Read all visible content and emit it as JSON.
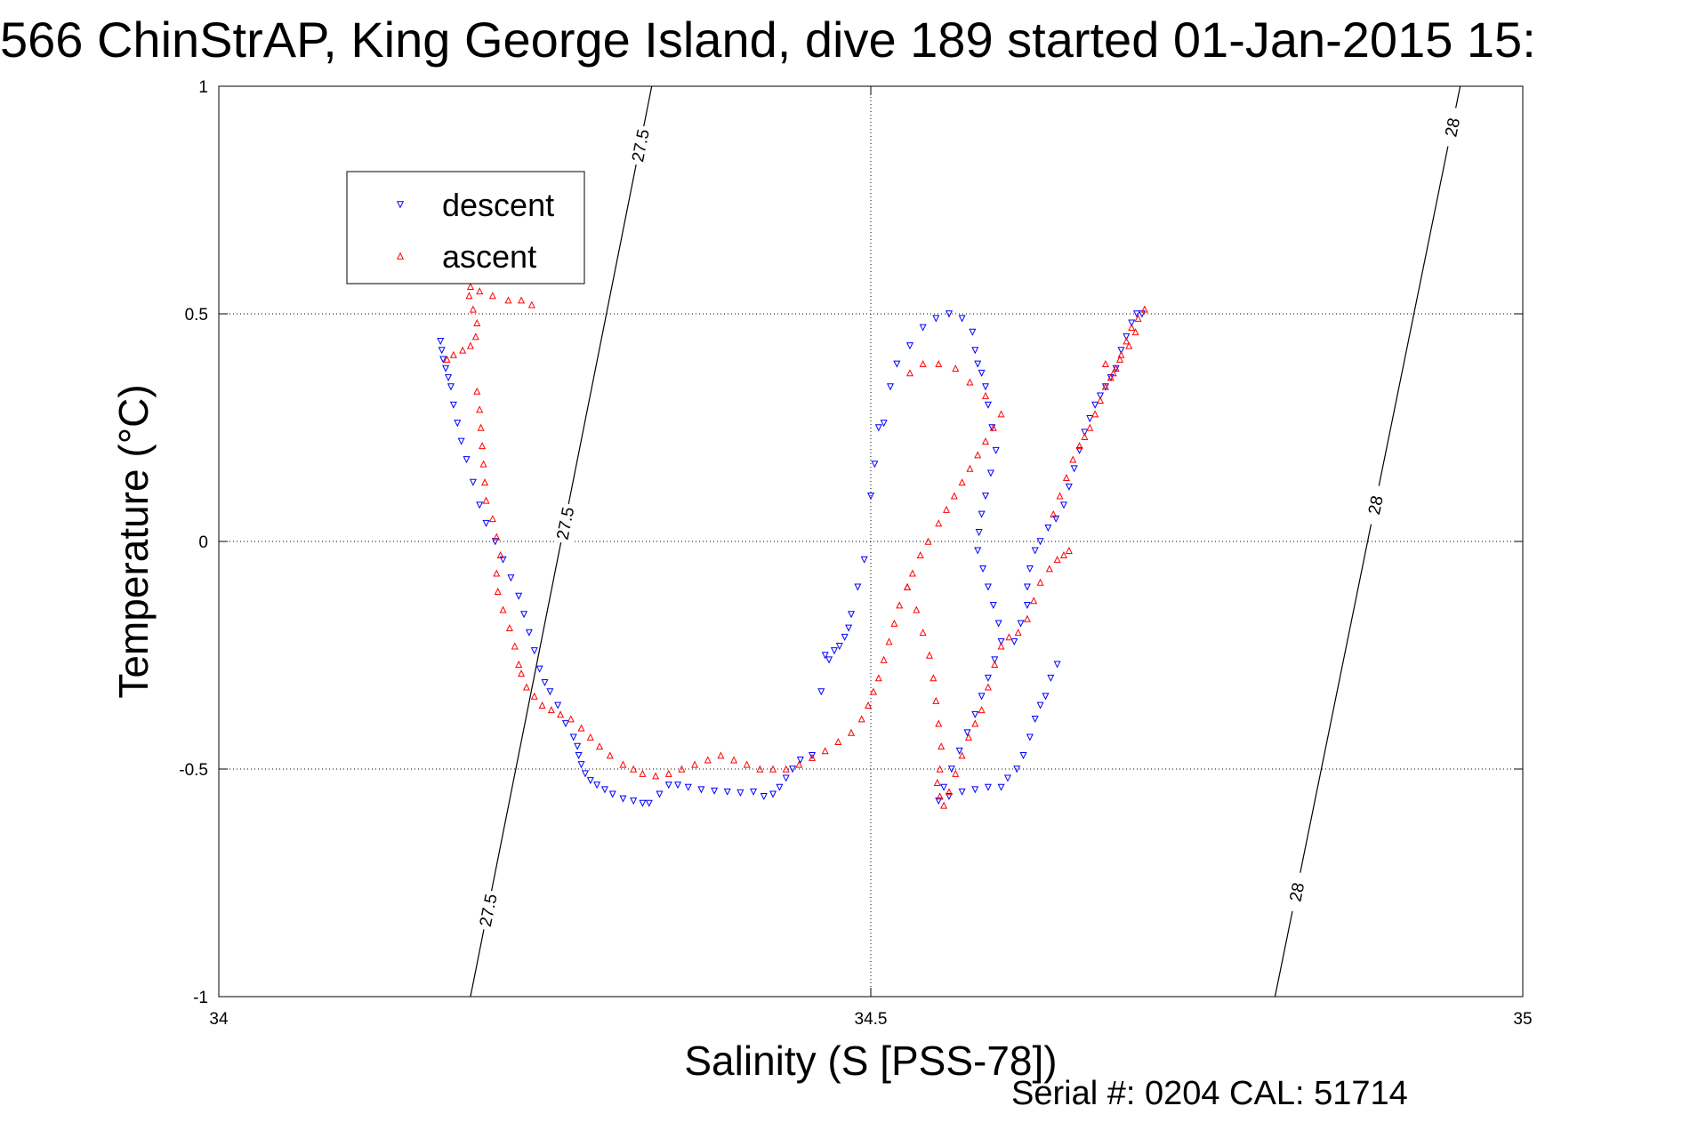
{
  "chart_data": {
    "type": "scatter",
    "title": "566 ChinStrAP, King George Island, dive 189 started 01-Jan-2015 15:",
    "xlabel": "Salinity (S [PSS-78])",
    "ylabel": "Temperature (°C)",
    "xlim": [
      34,
      35
    ],
    "ylim": [
      -1,
      1
    ],
    "xticks": [
      "34",
      "34.5",
      "35"
    ],
    "yticks": [
      "1",
      "0.5",
      "0",
      "-0.5",
      "-1"
    ],
    "grid": true,
    "legend_position": "upper-left",
    "footer": "Serial #: 0204  CAL: 51714",
    "contours": [
      {
        "label": "27.5",
        "x_bottom": 34.193,
        "x_top": 34.332,
        "label_y": [
          0.87,
          0.04,
          -0.81
        ]
      },
      {
        "label": "28",
        "x_bottom": 34.81,
        "x_top": 34.952,
        "label_y": [
          0.91,
          0.08,
          -0.77
        ]
      }
    ],
    "series": [
      {
        "name": "descent",
        "color": "#0000ff",
        "marker": "triangle-down",
        "points": [
          [
            34.17,
            0.44
          ],
          [
            34.171,
            0.42
          ],
          [
            34.172,
            0.4
          ],
          [
            34.174,
            0.38
          ],
          [
            34.176,
            0.36
          ],
          [
            34.178,
            0.34
          ],
          [
            34.18,
            0.3
          ],
          [
            34.183,
            0.26
          ],
          [
            34.186,
            0.22
          ],
          [
            34.19,
            0.18
          ],
          [
            34.195,
            0.13
          ],
          [
            34.2,
            0.08
          ],
          [
            34.205,
            0.04
          ],
          [
            34.212,
            0.0
          ],
          [
            34.218,
            -0.04
          ],
          [
            34.224,
            -0.08
          ],
          [
            34.23,
            -0.12
          ],
          [
            34.234,
            -0.16
          ],
          [
            34.238,
            -0.2
          ],
          [
            34.242,
            -0.24
          ],
          [
            34.246,
            -0.28
          ],
          [
            34.25,
            -0.31
          ],
          [
            34.254,
            -0.33
          ],
          [
            34.26,
            -0.36
          ],
          [
            34.266,
            -0.4
          ],
          [
            34.272,
            -0.43
          ],
          [
            34.275,
            -0.45
          ],
          [
            34.276,
            -0.47
          ],
          [
            34.278,
            -0.49
          ],
          [
            34.281,
            -0.51
          ],
          [
            34.285,
            -0.525
          ],
          [
            34.29,
            -0.535
          ],
          [
            34.296,
            -0.545
          ],
          [
            34.302,
            -0.555
          ],
          [
            34.31,
            -0.565
          ],
          [
            34.318,
            -0.57
          ],
          [
            34.325,
            -0.575
          ],
          [
            34.33,
            -0.575
          ],
          [
            34.338,
            -0.555
          ],
          [
            34.345,
            -0.535
          ],
          [
            34.352,
            -0.535
          ],
          [
            34.36,
            -0.54
          ],
          [
            34.37,
            -0.545
          ],
          [
            34.38,
            -0.548
          ],
          [
            34.39,
            -0.55
          ],
          [
            34.4,
            -0.552
          ],
          [
            34.41,
            -0.55
          ],
          [
            34.418,
            -0.56
          ],
          [
            34.425,
            -0.555
          ],
          [
            34.43,
            -0.54
          ],
          [
            34.435,
            -0.52
          ],
          [
            34.44,
            -0.5
          ],
          [
            34.446,
            -0.48
          ],
          [
            34.455,
            -0.47
          ],
          [
            34.462,
            -0.33
          ],
          [
            34.465,
            -0.25
          ],
          [
            34.468,
            -0.26
          ],
          [
            34.472,
            -0.24
          ],
          [
            34.476,
            -0.23
          ],
          [
            34.48,
            -0.21
          ],
          [
            34.483,
            -0.19
          ],
          [
            34.485,
            -0.16
          ],
          [
            34.49,
            -0.1
          ],
          [
            34.495,
            -0.04
          ],
          [
            34.5,
            0.1
          ],
          [
            34.503,
            0.17
          ],
          [
            34.506,
            0.25
          ],
          [
            34.51,
            0.26
          ],
          [
            34.515,
            0.34
          ],
          [
            34.52,
            0.39
          ],
          [
            34.53,
            0.43
          ],
          [
            34.54,
            0.47
          ],
          [
            34.55,
            0.49
          ],
          [
            34.56,
            0.5
          ],
          [
            34.57,
            0.49
          ],
          [
            34.578,
            0.46
          ],
          [
            34.58,
            0.42
          ],
          [
            34.582,
            0.39
          ],
          [
            34.585,
            0.37
          ],
          [
            34.588,
            0.34
          ],
          [
            34.59,
            0.3
          ],
          [
            34.593,
            0.25
          ],
          [
            34.596,
            0.2
          ],
          [
            34.592,
            0.15
          ],
          [
            34.588,
            0.1
          ],
          [
            34.585,
            0.06
          ],
          [
            34.583,
            0.02
          ],
          [
            34.582,
            -0.02
          ],
          [
            34.586,
            -0.06
          ],
          [
            34.59,
            -0.1
          ],
          [
            34.594,
            -0.14
          ],
          [
            34.598,
            -0.18
          ],
          [
            34.6,
            -0.22
          ],
          [
            34.595,
            -0.26
          ],
          [
            34.59,
            -0.3
          ],
          [
            34.585,
            -0.34
          ],
          [
            34.58,
            -0.38
          ],
          [
            34.574,
            -0.42
          ],
          [
            34.568,
            -0.46
          ],
          [
            34.562,
            -0.5
          ],
          [
            34.556,
            -0.54
          ],
          [
            34.552,
            -0.57
          ],
          [
            34.56,
            -0.56
          ],
          [
            34.57,
            -0.55
          ],
          [
            34.58,
            -0.545
          ],
          [
            34.59,
            -0.54
          ],
          [
            34.6,
            -0.54
          ],
          [
            34.605,
            -0.52
          ],
          [
            34.612,
            -0.5
          ],
          [
            34.617,
            -0.47
          ],
          [
            34.622,
            -0.43
          ],
          [
            34.626,
            -0.39
          ],
          [
            34.63,
            -0.36
          ],
          [
            34.634,
            -0.34
          ],
          [
            34.638,
            -0.3
          ],
          [
            34.643,
            -0.27
          ],
          [
            34.61,
            -0.22
          ],
          [
            34.615,
            -0.18
          ],
          [
            34.62,
            -0.14
          ],
          [
            34.62,
            -0.1
          ],
          [
            34.622,
            -0.06
          ],
          [
            34.626,
            -0.02
          ],
          [
            34.63,
            0.0
          ],
          [
            34.636,
            0.03
          ],
          [
            34.642,
            0.05
          ],
          [
            34.648,
            0.08
          ],
          [
            34.652,
            0.12
          ],
          [
            34.656,
            0.16
          ],
          [
            34.66,
            0.2
          ],
          [
            34.664,
            0.24
          ],
          [
            34.668,
            0.27
          ],
          [
            34.672,
            0.3
          ],
          [
            34.676,
            0.32
          ],
          [
            34.68,
            0.34
          ],
          [
            34.684,
            0.36
          ],
          [
            34.688,
            0.38
          ],
          [
            34.692,
            0.42
          ],
          [
            34.696,
            0.45
          ],
          [
            34.7,
            0.48
          ],
          [
            34.704,
            0.5
          ],
          [
            34.708,
            0.5
          ]
        ]
      },
      {
        "name": "ascent",
        "color": "#ff0000",
        "marker": "triangle-up",
        "points": [
          [
            34.175,
            0.4
          ],
          [
            34.18,
            0.41
          ],
          [
            34.187,
            0.42
          ],
          [
            34.193,
            0.43
          ],
          [
            34.197,
            0.45
          ],
          [
            34.198,
            0.48
          ],
          [
            34.195,
            0.51
          ],
          [
            34.192,
            0.54
          ],
          [
            34.193,
            0.56
          ],
          [
            34.2,
            0.55
          ],
          [
            34.21,
            0.54
          ],
          [
            34.222,
            0.53
          ],
          [
            34.232,
            0.53
          ],
          [
            34.24,
            0.52
          ],
          [
            34.198,
            0.33
          ],
          [
            34.2,
            0.29
          ],
          [
            34.201,
            0.25
          ],
          [
            34.202,
            0.21
          ],
          [
            34.203,
            0.17
          ],
          [
            34.204,
            0.13
          ],
          [
            34.205,
            0.09
          ],
          [
            34.21,
            0.05
          ],
          [
            34.213,
            0.01
          ],
          [
            34.216,
            -0.03
          ],
          [
            34.213,
            -0.07
          ],
          [
            34.214,
            -0.11
          ],
          [
            34.218,
            -0.15
          ],
          [
            34.223,
            -0.19
          ],
          [
            34.227,
            -0.23
          ],
          [
            34.23,
            -0.27
          ],
          [
            34.232,
            -0.29
          ],
          [
            34.236,
            -0.32
          ],
          [
            34.242,
            -0.34
          ],
          [
            34.248,
            -0.36
          ],
          [
            34.255,
            -0.37
          ],
          [
            34.262,
            -0.38
          ],
          [
            34.27,
            -0.39
          ],
          [
            34.278,
            -0.41
          ],
          [
            34.285,
            -0.43
          ],
          [
            34.292,
            -0.45
          ],
          [
            34.3,
            -0.47
          ],
          [
            34.31,
            -0.49
          ],
          [
            34.318,
            -0.5
          ],
          [
            34.325,
            -0.51
          ],
          [
            34.335,
            -0.515
          ],
          [
            34.345,
            -0.51
          ],
          [
            34.355,
            -0.5
          ],
          [
            34.365,
            -0.49
          ],
          [
            34.375,
            -0.48
          ],
          [
            34.385,
            -0.47
          ],
          [
            34.395,
            -0.48
          ],
          [
            34.405,
            -0.49
          ],
          [
            34.415,
            -0.5
          ],
          [
            34.425,
            -0.5
          ],
          [
            34.435,
            -0.5
          ],
          [
            34.445,
            -0.49
          ],
          [
            34.455,
            -0.475
          ],
          [
            34.465,
            -0.46
          ],
          [
            34.475,
            -0.44
          ],
          [
            34.485,
            -0.42
          ],
          [
            34.493,
            -0.39
          ],
          [
            34.498,
            -0.36
          ],
          [
            34.502,
            -0.33
          ],
          [
            34.506,
            -0.3
          ],
          [
            34.51,
            -0.26
          ],
          [
            34.514,
            -0.22
          ],
          [
            34.518,
            -0.18
          ],
          [
            34.522,
            -0.14
          ],
          [
            34.528,
            -0.1
          ],
          [
            34.532,
            -0.07
          ],
          [
            34.538,
            -0.03
          ],
          [
            34.544,
            0.0
          ],
          [
            34.552,
            0.04
          ],
          [
            34.558,
            0.07
          ],
          [
            34.564,
            0.1
          ],
          [
            34.57,
            0.13
          ],
          [
            34.576,
            0.16
          ],
          [
            34.582,
            0.19
          ],
          [
            34.588,
            0.22
          ],
          [
            34.594,
            0.25
          ],
          [
            34.6,
            0.28
          ],
          [
            34.588,
            0.32
          ],
          [
            34.576,
            0.35
          ],
          [
            34.565,
            0.38
          ],
          [
            34.552,
            0.39
          ],
          [
            34.54,
            0.39
          ],
          [
            34.53,
            0.37
          ],
          [
            34.528,
            -0.1
          ],
          [
            34.535,
            -0.15
          ],
          [
            34.54,
            -0.2
          ],
          [
            34.545,
            -0.25
          ],
          [
            34.548,
            -0.3
          ],
          [
            34.55,
            -0.35
          ],
          [
            34.552,
            -0.4
          ],
          [
            34.554,
            -0.45
          ],
          [
            34.553,
            -0.5
          ],
          [
            34.551,
            -0.53
          ],
          [
            34.553,
            -0.56
          ],
          [
            34.556,
            -0.58
          ],
          [
            34.56,
            -0.55
          ],
          [
            34.565,
            -0.51
          ],
          [
            34.57,
            -0.47
          ],
          [
            34.575,
            -0.43
          ],
          [
            34.58,
            -0.4
          ],
          [
            34.585,
            -0.37
          ],
          [
            34.59,
            -0.32
          ],
          [
            34.595,
            -0.27
          ],
          [
            34.6,
            -0.23
          ],
          [
            34.606,
            -0.21
          ],
          [
            34.613,
            -0.2
          ],
          [
            34.62,
            -0.17
          ],
          [
            34.625,
            -0.13
          ],
          [
            34.63,
            -0.09
          ],
          [
            34.637,
            -0.06
          ],
          [
            34.643,
            -0.04
          ],
          [
            34.648,
            -0.03
          ],
          [
            34.652,
            -0.02
          ],
          [
            34.64,
            0.06
          ],
          [
            34.645,
            0.1
          ],
          [
            34.65,
            0.14
          ],
          [
            34.655,
            0.18
          ],
          [
            34.66,
            0.21
          ],
          [
            34.664,
            0.23
          ],
          [
            34.668,
            0.25
          ],
          [
            34.672,
            0.28
          ],
          [
            34.676,
            0.31
          ],
          [
            34.68,
            0.34
          ],
          [
            34.684,
            0.36
          ],
          [
            34.688,
            0.38
          ],
          [
            34.692,
            0.41
          ],
          [
            34.696,
            0.44
          ],
          [
            34.7,
            0.47
          ],
          [
            34.705,
            0.49
          ],
          [
            34.71,
            0.51
          ],
          [
            34.68,
            0.39
          ],
          [
            34.686,
            0.37
          ],
          [
            34.691,
            0.4
          ],
          [
            34.698,
            0.43
          ],
          [
            34.703,
            0.46
          ]
        ]
      }
    ]
  }
}
